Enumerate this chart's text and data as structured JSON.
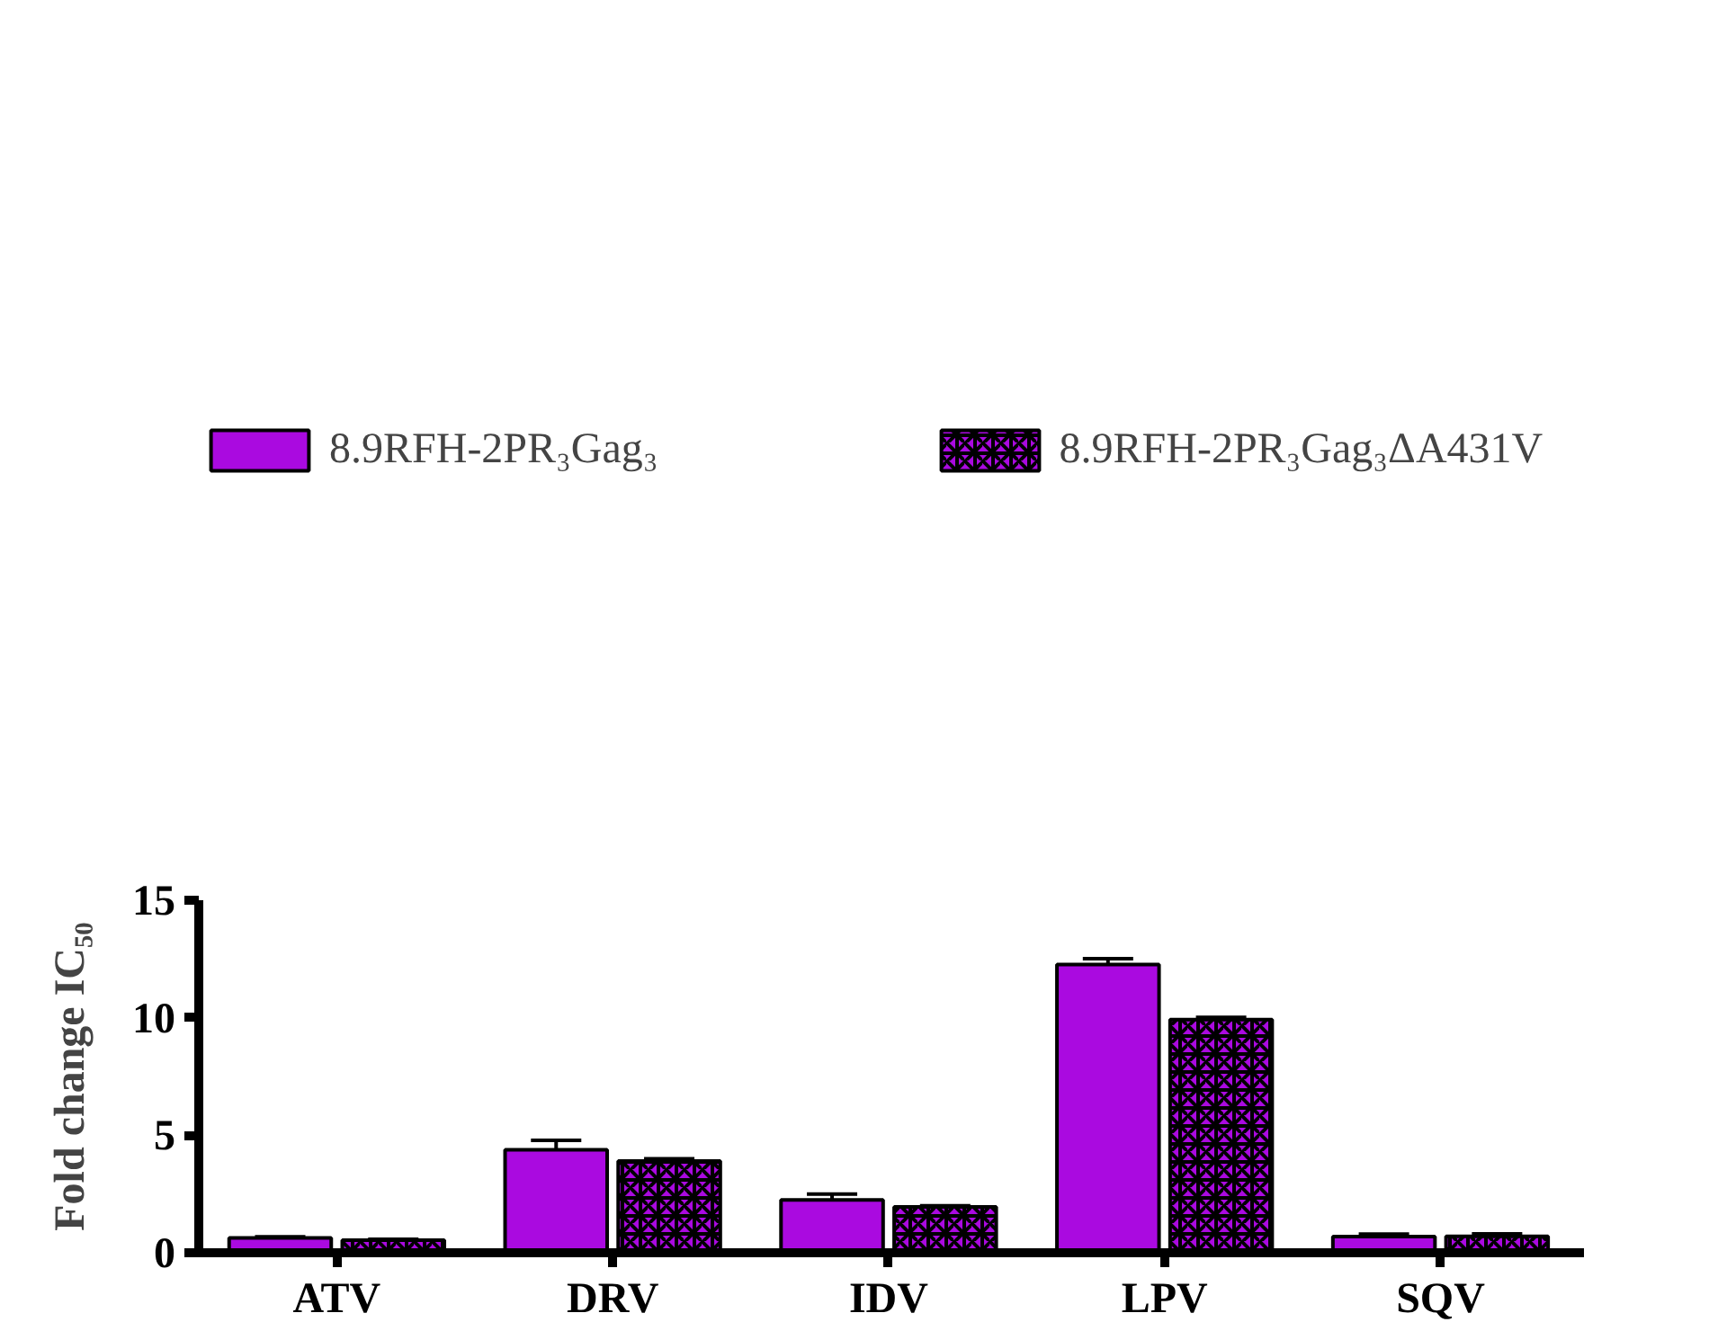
{
  "chart_data": {
    "type": "bar",
    "ylabel": "Fold change IC₅₀",
    "categories": [
      "ATV",
      "DRV",
      "IDV",
      "LPV",
      "SQV"
    ],
    "series": [
      {
        "name": "8.9RFH-2PR₃Gag₃",
        "color": "#aa0ae0",
        "values": [
          0.63,
          4.38,
          2.25,
          12.26,
          0.69
        ],
        "errors": [
          0.05,
          0.4,
          0.25,
          0.25,
          0.1
        ]
      },
      {
        "name": "8.9RFH-2PR₃Gag₃ΔA431V",
        "color": "#aa0ae0",
        "values": [
          0.54,
          3.9,
          1.95,
          9.92,
          0.7
        ],
        "errors": [
          0.03,
          0.1,
          0.05,
          0.1,
          0.1
        ]
      }
    ],
    "ylim": [
      0,
      15
    ],
    "yticks": [
      0,
      5,
      10,
      15
    ],
    "grid": false,
    "legend": "top"
  }
}
